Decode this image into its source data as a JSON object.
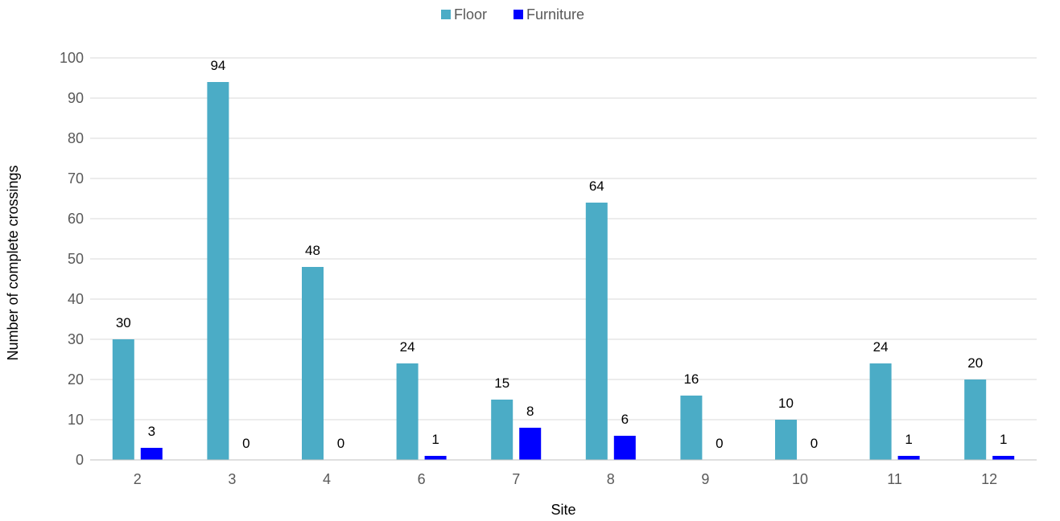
{
  "chart_data": {
    "type": "bar",
    "categories": [
      "2",
      "3",
      "4",
      "6",
      "7",
      "8",
      "9",
      "10",
      "11",
      "12"
    ],
    "series": [
      {
        "name": "Floor",
        "values": [
          30,
          94,
          48,
          24,
          15,
          64,
          16,
          10,
          24,
          20
        ],
        "color": "#4BACC6"
      },
      {
        "name": "Furniture",
        "values": [
          3,
          0,
          0,
          1,
          8,
          6,
          0,
          0,
          1,
          1
        ],
        "color": "#0000FF"
      }
    ],
    "xlabel": "Site",
    "ylabel": "Number of complete crossings",
    "ylim": [
      0,
      100
    ],
    "yticks": [
      0,
      10,
      20,
      30,
      40,
      50,
      60,
      70,
      80,
      90,
      100
    ],
    "grid": true,
    "legend": "top-center",
    "data_labels": true
  }
}
